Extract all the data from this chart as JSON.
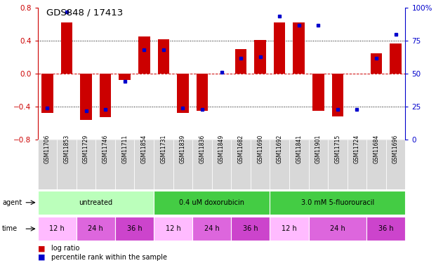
{
  "title": "GDS848 / 17413",
  "samples": [
    "GSM11706",
    "GSM11853",
    "GSM11729",
    "GSM11746",
    "GSM11711",
    "GSM11854",
    "GSM11731",
    "GSM11839",
    "GSM11836",
    "GSM11849",
    "GSM11682",
    "GSM11690",
    "GSM11692",
    "GSM11841",
    "GSM11901",
    "GSM11715",
    "GSM11724",
    "GSM11684",
    "GSM11696"
  ],
  "log_ratio": [
    -0.48,
    0.62,
    -0.56,
    -0.53,
    -0.08,
    0.45,
    0.42,
    -0.48,
    -0.45,
    0.0,
    0.3,
    0.41,
    0.62,
    0.62,
    -0.45,
    -0.52,
    0.0,
    0.25,
    0.37
  ],
  "percentile_rank": [
    24,
    97,
    22,
    23,
    44,
    68,
    68,
    24,
    23,
    51,
    62,
    63,
    94,
    87,
    87,
    23,
    23,
    62,
    80
  ],
  "agents": [
    {
      "label": "untreated",
      "start": 0,
      "end": 6
    },
    {
      "label": "0.4 uM doxorubicin",
      "start": 6,
      "end": 12
    },
    {
      "label": "3.0 mM 5-fluorouracil",
      "start": 12,
      "end": 19
    }
  ],
  "agent_colors": [
    "#bbffbb",
    "#44cc44",
    "#44cc44"
  ],
  "times": [
    {
      "label": "12 h",
      "start": 0,
      "end": 2
    },
    {
      "label": "24 h",
      "start": 2,
      "end": 4
    },
    {
      "label": "36 h",
      "start": 4,
      "end": 6
    },
    {
      "label": "12 h",
      "start": 6,
      "end": 8
    },
    {
      "label": "24 h",
      "start": 8,
      "end": 10
    },
    {
      "label": "36 h",
      "start": 10,
      "end": 12
    },
    {
      "label": "12 h",
      "start": 12,
      "end": 14
    },
    {
      "label": "24 h",
      "start": 14,
      "end": 17
    },
    {
      "label": "36 h",
      "start": 17,
      "end": 19
    }
  ],
  "time_colors": [
    "#ffbbff",
    "#dd66dd",
    "#cc44cc",
    "#ffbbff",
    "#dd66dd",
    "#cc44cc",
    "#ffbbff",
    "#dd66dd",
    "#cc44cc"
  ],
  "bar_color": "#cc0000",
  "dot_color": "#0000cc",
  "ylim": [
    -0.8,
    0.8
  ],
  "y2lim": [
    0,
    100
  ],
  "yticks": [
    -0.8,
    -0.4,
    0.0,
    0.4,
    0.8
  ],
  "y2ticks": [
    0,
    25,
    50,
    75,
    100
  ],
  "hlines": [
    -0.4,
    0.0,
    0.4
  ],
  "left_yaxis_color": "#cc0000",
  "right_yaxis_color": "#0000cc"
}
